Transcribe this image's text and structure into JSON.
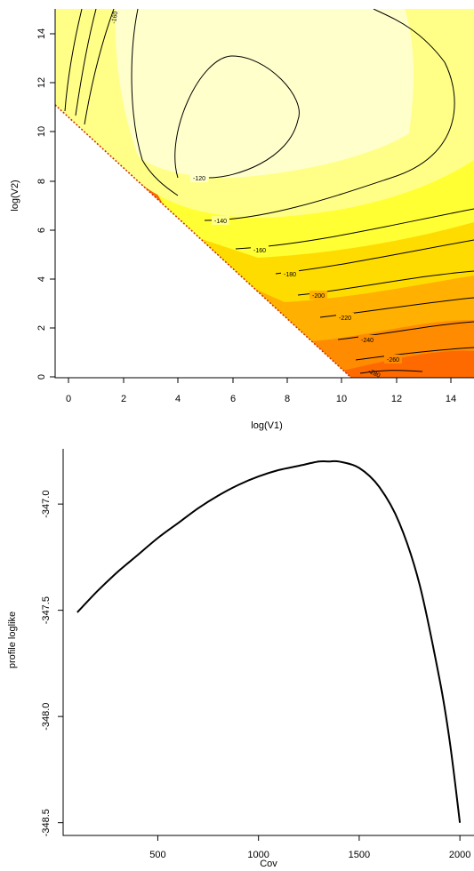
{
  "chart_data": [
    {
      "type": "heatmap",
      "subtype": "filled-contour",
      "xlabel": "log(V1)",
      "ylabel": "log(V2)",
      "xlim": [
        -0.5,
        15
      ],
      "ylim": [
        -0.3,
        15
      ],
      "x_ticks": [
        "0",
        "2",
        "4",
        "6",
        "8",
        "10",
        "12",
        "14"
      ],
      "y_ticks": [
        "0",
        "2",
        "4",
        "6",
        "8",
        "10",
        "12",
        "14"
      ],
      "contour_levels": [
        "-120",
        "-140",
        "-160",
        "-180",
        "-200",
        "-220",
        "-240",
        "-260",
        "-280"
      ],
      "colors": {
        "lightest": "#ffffd2",
        "light": "#ffff9a",
        "yellow": "#ffff4d",
        "gold": "#ffe81a",
        "amber": "#ffb300",
        "orange": "#ff8a00",
        "red_orange": "#ff5a00"
      },
      "valid_region_note_line": [
        [
          -0.5,
          10.8
        ],
        [
          10.8,
          -0.3
        ]
      ]
    },
    {
      "type": "line",
      "xlabel": "Cov",
      "ylabel": "profile loglike",
      "x_ticks": [
        "500",
        "1000",
        "1500",
        "2000"
      ],
      "y_ticks": [
        "-347.0",
        "-347.5",
        "-348.0",
        "-348.5"
      ],
      "xlim": [
        30,
        2070
      ],
      "ylim": [
        -348.56,
        -346.74
      ],
      "x": [
        100,
        200,
        300,
        400,
        500,
        600,
        700,
        800,
        900,
        1000,
        1100,
        1200,
        1300,
        1350,
        1400,
        1500,
        1600,
        1700,
        1800,
        1900,
        1950,
        2000
      ],
      "y": [
        -347.51,
        -347.41,
        -347.32,
        -347.24,
        -347.16,
        -347.09,
        -347.02,
        -346.96,
        -346.91,
        -346.87,
        -346.84,
        -346.82,
        -346.8,
        -346.8,
        -346.8,
        -346.83,
        -346.92,
        -347.09,
        -347.38,
        -347.83,
        -348.12,
        -348.5
      ]
    }
  ]
}
